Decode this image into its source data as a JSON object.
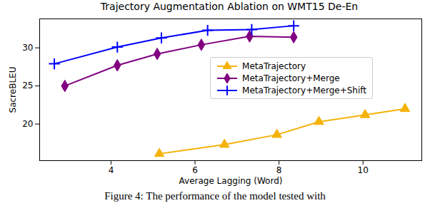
{
  "chart_data": {
    "type": "line",
    "title": "Trajectory Augmentation Ablation on WMT15 De-En",
    "caption": "Figure 4: The performance of the model tested with",
    "x_label": "Average Lagging (Word)",
    "y_label": "SacreBLEU",
    "xlim": [
      2.3,
      11.4
    ],
    "xticks": [
      4,
      6,
      8,
      10
    ],
    "ylim": [
      15.2,
      33.8
    ],
    "yticks": [
      20,
      25,
      30
    ],
    "legend": "center right",
    "grid": false,
    "series": [
      {
        "name": "MetaTrajectory",
        "color": "#f5b30a",
        "marker": "triangle",
        "x": [
          5.15,
          6.7,
          7.95,
          8.95,
          10.05,
          11.0
        ],
        "values": [
          16.1,
          17.3,
          18.6,
          20.3,
          21.2,
          22.0
        ]
      },
      {
        "name": "MetaTrajectory+Merge",
        "color": "#800080",
        "marker": "diamond",
        "x": [
          2.9,
          4.15,
          5.1,
          6.15,
          7.3,
          8.35
        ],
        "values": [
          25.0,
          27.7,
          29.2,
          30.4,
          31.5,
          31.4
        ]
      },
      {
        "name": "MetaTrajectory+Merge+Shift",
        "color": "#0000ff",
        "marker": "plus",
        "x": [
          2.65,
          4.15,
          5.2,
          6.3,
          7.35,
          8.35
        ],
        "values": [
          27.9,
          30.1,
          31.3,
          32.3,
          32.4,
          32.9
        ]
      }
    ]
  }
}
